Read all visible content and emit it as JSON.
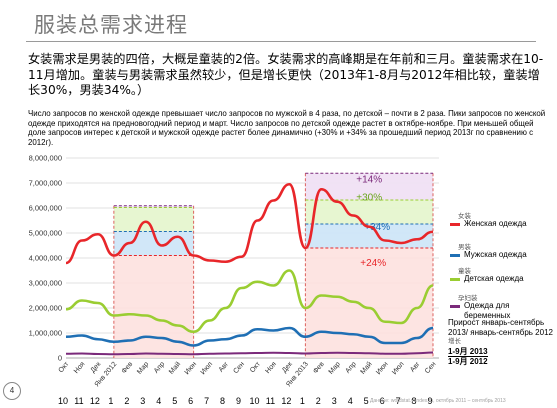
{
  "slide": {
    "title": "服装总需求进程",
    "zh_paragraph": "女装需求是男装的四倍，大概是童装的2倍。女装需求的高峰期是在年前和三月。童装需求在10-11月增加。童装与男装需求虽然较少，但是增长更快（2013年1-8月与2012年相比较，童装增长30%，男装34%。）",
    "ru_paragraph": "Число запросов по женской одежде превышает число запросов по мужской в 4 раза, по детской – почти в 2 раза. Пики запросов по женской одежде приходятся на предновогодний период и март. Число запросов по детской одежде растет в октябре-ноябре. При меньшей общей доле запросов интерес к детской и мужской одежде растет более динамично  (+30% и +34% за прошедший период 2013г по сравнению с 2012г).",
    "page_number": "4",
    "footer": "Данные: wordstat.yandex.ru, октябрь 2011 – сентябрь 2013"
  },
  "legend": [
    {
      "zh": "女装",
      "ru": "Женская одежда",
      "color": "#e8262a"
    },
    {
      "zh": "男装",
      "ru": "Мужская одежда",
      "color": "#1f6fb4"
    },
    {
      "zh": "童装",
      "ru": "Детская одежда",
      "color": "#9acd32"
    },
    {
      "zh": "孕妇装",
      "ru": "Одежда для беременных",
      "color": "#7b2a7b"
    }
  ],
  "growth_note": {
    "ru_title": "Прирост январь-сентябрь 2013/ январь-сентябрь 2012",
    "zh_label": "增长",
    "line1": "1-9月 2013",
    "line2": "1-9月 2012"
  },
  "annotations": {
    "top_pct": "+14%",
    "children_pct": "+30%",
    "men_pct": "+34%",
    "women_pct": "+24%"
  },
  "chart_data": {
    "type": "line",
    "ylim": [
      0,
      8000000
    ],
    "y_ticks": [
      "0",
      "1,000,000",
      "2,000,000",
      "3,000,000",
      "4,000,000",
      "5,000,000",
      "6,000,000",
      "7,000,000",
      "8,000,000"
    ],
    "y_tick_values": [
      0,
      1000000,
      2000000,
      3000000,
      4000000,
      5000000,
      6000000,
      7000000,
      8000000
    ],
    "categories": [
      "Окт",
      "Ноя",
      "Дек",
      "Янв 2012",
      "Фев",
      "Мар",
      "Апр",
      "Май",
      "Июн",
      "Июл",
      "Авг",
      "Сен",
      "Окт",
      "Ноя",
      "Дек",
      "Янв 2013",
      "Фев",
      "Мар",
      "Апр",
      "Май",
      "Июн",
      "Июл",
      "Авг",
      "Сен"
    ],
    "month_numbers": [
      "10",
      "11",
      "12",
      "1",
      "2",
      "3",
      "4",
      "5",
      "6",
      "7",
      "8",
      "9",
      "10",
      "11",
      "12",
      "1",
      "2",
      "3",
      "4",
      "5",
      "6",
      "7",
      "8",
      "9"
    ],
    "series": [
      {
        "name": "Женская одежда",
        "color": "#e8262a",
        "values": [
          3800000,
          4700000,
          4950000,
          4100000,
          4600000,
          5450000,
          4500000,
          4850000,
          4100000,
          3900000,
          3850000,
          4050000,
          5500000,
          6300000,
          6950000,
          4400000,
          6750000,
          6250000,
          5700000,
          5250000,
          4700000,
          4600000,
          4750000,
          5050000
        ]
      },
      {
        "name": "Мужская одежда",
        "color": "#1f6fb4",
        "values": [
          850000,
          900000,
          750000,
          650000,
          700000,
          850000,
          800000,
          650000,
          500000,
          700000,
          750000,
          900000,
          1150000,
          1100000,
          1200000,
          850000,
          1050000,
          1000000,
          950000,
          850000,
          600000,
          600000,
          800000,
          1200000
        ]
      },
      {
        "name": "Детская одежда",
        "color": "#9acd32",
        "values": [
          1950000,
          2300000,
          2200000,
          1700000,
          1750000,
          1700000,
          1500000,
          1300000,
          1050000,
          1500000,
          2000000,
          2800000,
          3050000,
          2900000,
          3500000,
          2000000,
          2500000,
          2450000,
          2250000,
          2000000,
          1450000,
          1400000,
          2000000,
          2900000
        ]
      },
      {
        "name": "Одежда для беременных",
        "color": "#7b2a7b",
        "values": [
          170000,
          180000,
          160000,
          150000,
          160000,
          180000,
          170000,
          160000,
          150000,
          170000,
          180000,
          190000,
          200000,
          210000,
          200000,
          180000,
          200000,
          210000,
          200000,
          190000,
          170000,
          170000,
          190000,
          220000
        ]
      }
    ],
    "highlight_ranges": [
      {
        "from": 3,
        "to": 8
      },
      {
        "from": 15,
        "to": 23
      }
    ]
  }
}
